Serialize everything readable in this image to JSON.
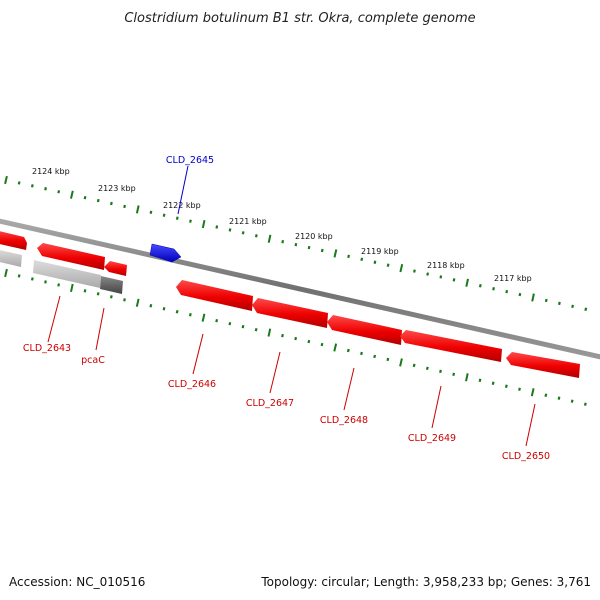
{
  "title": "Clostridium botulinum B1 str. Okra, complete genome",
  "footer": {
    "accession": "Accession: NC_010516",
    "topology": "Topology: circular; Length: 3,958,233 bp; Genes: 3,761"
  },
  "colors": {
    "forward_gene": "#ff0000",
    "reverse_gene": "#ff0000",
    "highlight_gene": "#0000ee",
    "gray_gene": "#bbbbbb",
    "dark_gray_gene": "#666666",
    "backbone": "#808080",
    "ticks": "#1a7a1a",
    "label_red": "#cc0000",
    "label_blue": "#0000cc"
  },
  "scale_ticks": [
    "2124 kbp",
    "2123 kbp",
    "2122 kbp",
    "2121 kbp",
    "2120 kbp",
    "2119 kbp",
    "2118 kbp",
    "2117 kbp"
  ],
  "genes": [
    {
      "id": "CLD_2645",
      "strand": "forward",
      "color": "blue"
    },
    {
      "id": "CLD_2643",
      "strand": "reverse",
      "color": "red"
    },
    {
      "id": "pcaC",
      "strand": "reverse",
      "color": "red"
    },
    {
      "id": "CLD_2646",
      "strand": "reverse",
      "color": "red"
    },
    {
      "id": "CLD_2647",
      "strand": "reverse",
      "color": "red"
    },
    {
      "id": "CLD_2648",
      "strand": "reverse",
      "color": "red"
    },
    {
      "id": "CLD_2649",
      "strand": "reverse",
      "color": "red"
    },
    {
      "id": "CLD_2650",
      "strand": "reverse",
      "color": "red"
    }
  ]
}
